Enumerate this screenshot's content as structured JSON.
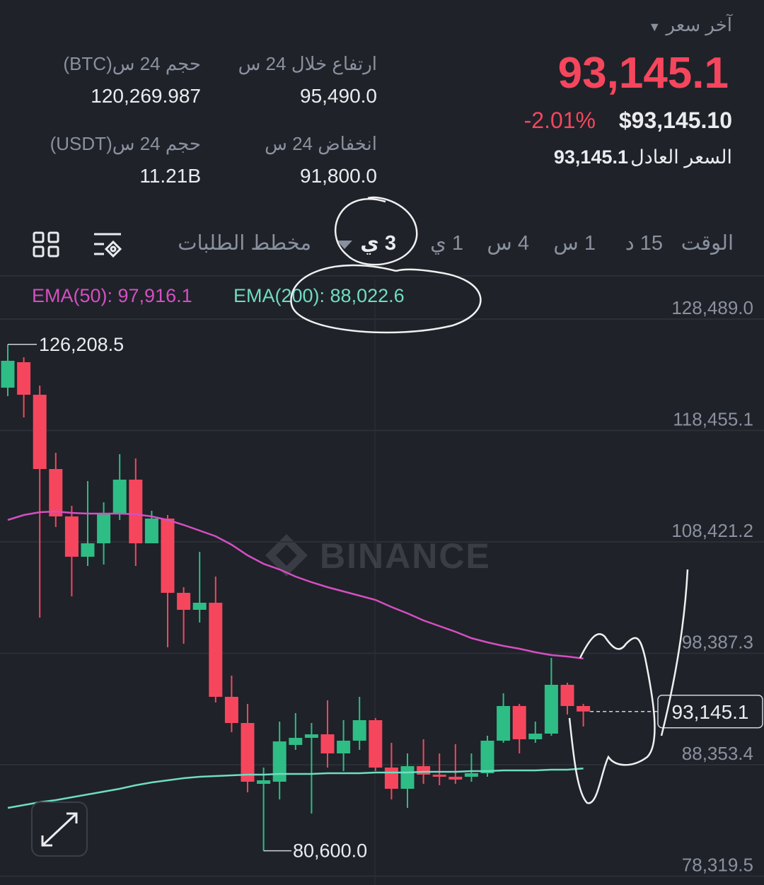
{
  "header": {
    "last_price_label": "آخر سعر",
    "price": "93,145.1",
    "change": "-2.01%",
    "usd_price": "$93,145.10",
    "fair_price_label": "السعر العادل",
    "fair_price": "93,145.1"
  },
  "stats": [
    {
      "label": "ارتفاع خلال 24 س",
      "value": "95,490.0"
    },
    {
      "label": "حجم 24 س(BTC)",
      "value": "120,269.987"
    },
    {
      "label": "انخفاض 24 س",
      "value": "91,800.0"
    },
    {
      "label": "حجم 24 س(USDT)",
      "value": "11.21B"
    }
  ],
  "tabs": [
    "الوقت",
    "15 د",
    "1 س",
    "4 س",
    "1 ي",
    "3 ي",
    "مخطط الطلبات"
  ],
  "chart_data": {
    "type": "candlestick",
    "watermark": "BINANCE",
    "up_color": "#2ebd85",
    "down_color": "#f6465d",
    "open": [
      122309,
      124603,
      121672,
      114982,
      110714,
      107082,
      108293,
      110905,
      114027,
      108293,
      110523,
      103833,
      102304,
      102941,
      94468,
      92111,
      86632,
      86823,
      90136,
      90773,
      91091,
      89371,
      90518,
      92365,
      88097,
      86186,
      88224,
      87460,
      87269,
      87269,
      87587,
      90518,
      93640,
      90645,
      91155,
      95551,
      93640
    ],
    "high": [
      126208.5,
      125049,
      122500,
      116448,
      111670,
      113899,
      111988,
      116320,
      115938,
      111224,
      110841,
      104343,
      107528,
      105299,
      96379,
      93831,
      88097,
      92238,
      93003,
      92111,
      94149,
      92365,
      94468,
      92557,
      90327,
      89371,
      90645,
      89371,
      90199,
      89371,
      90964,
      94786,
      93831,
      92238,
      97972,
      95742,
      93831
    ],
    "low": [
      121545,
      119633,
      101603,
      109758,
      103515,
      106254,
      106382,
      110395,
      106254,
      108293,
      98928,
      99246,
      101157,
      93958,
      91282,
      85867,
      80600,
      85230,
      89690,
      83956,
      88097,
      87778,
      89690,
      87778,
      85230,
      84465,
      86632,
      86504,
      86632,
      86823,
      87269,
      90327,
      89371,
      90327,
      90964,
      92875,
      91792
    ],
    "close": [
      124730,
      121672,
      114982,
      110714,
      107082,
      108293,
      110905,
      114027,
      108293,
      110523,
      103833,
      102304,
      102941,
      94468,
      92111,
      86823,
      86950,
      90454,
      90773,
      91091,
      89371,
      90518,
      92365,
      88097,
      86186,
      88224,
      87460,
      87269,
      87014,
      87587,
      90518,
      93640,
      90645,
      91155,
      95551,
      93640,
      93145.1
    ],
    "series": [
      {
        "name": "EMA(50): 97,916.1",
        "color": "#d54fc2",
        "values": [
          110395,
          110841,
          111096,
          111160,
          111032,
          110969,
          110969,
          110969,
          110905,
          110714,
          110395,
          109949,
          109440,
          108930,
          108166,
          107210,
          106445,
          105936,
          105299,
          104789,
          104343,
          103961,
          103578,
          103196,
          102559,
          101986,
          101349,
          100839,
          100329,
          99756,
          99374,
          99055,
          98800,
          98482,
          98227,
          98099,
          97916.1
        ]
      },
      {
        "name": "EMA(200): 88,022.6",
        "color": "#6fdcc3",
        "values": [
          84465,
          84720,
          84975,
          85166,
          85421,
          85676,
          85931,
          86186,
          86504,
          86759,
          86950,
          87141,
          87269,
          87332,
          87396,
          87460,
          87460,
          87523,
          87523,
          87523,
          87587,
          87587,
          87587,
          87651,
          87651,
          87651,
          87715,
          87715,
          87715,
          87778,
          87778,
          87842,
          87842,
          87842,
          87906,
          87906,
          88022.6
        ]
      }
    ],
    "ylim": [
      77521,
      132057
    ],
    "yticks": [
      {
        "value": 128489,
        "label": "128,489.0"
      },
      {
        "value": 118455.1,
        "label": "118,455.1"
      },
      {
        "value": 108421.2,
        "label": "108,421.2"
      },
      {
        "value": 98387.3,
        "label": "98,387.3"
      },
      {
        "value": 88353.4,
        "label": "88,353.4"
      },
      {
        "value": 78319.5,
        "label": "78,319.5"
      }
    ],
    "grid": true,
    "high_marker": {
      "value": 126208.5,
      "label": "126,208.5"
    },
    "low_marker": {
      "value": 80600,
      "label": "80,600.0"
    },
    "last_price": {
      "value": 93145.1,
      "label": "93,145.1"
    }
  }
}
